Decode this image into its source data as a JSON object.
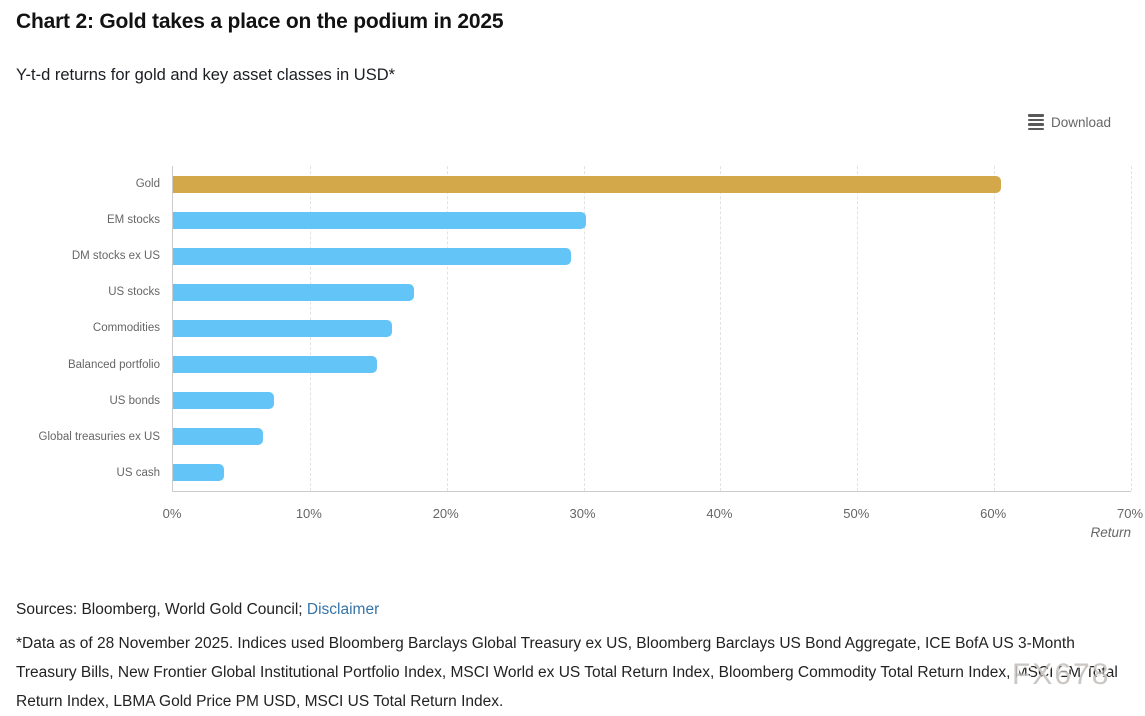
{
  "header": {
    "title": "Chart 2: Gold takes a place on the podium in 2025",
    "subtitle": "Y-t-d returns for gold and key asset classes in USD*"
  },
  "toolbar": {
    "download_label": "Download",
    "menu_icon": "hamburger-menu-icon"
  },
  "chart_data": {
    "type": "bar",
    "orientation": "horizontal",
    "title": "Chart 2: Gold takes a place on the podium in 2025",
    "subtitle": "Y-t-d returns for gold and key asset classes in USD*",
    "categories": [
      "Gold",
      "EM stocks",
      "DM stocks ex US",
      "US stocks",
      "Commodities",
      "Balanced portfolio",
      "US bonds",
      "Global treasuries ex US",
      "US cash"
    ],
    "values": [
      60.5,
      30.2,
      29.1,
      17.6,
      16.0,
      14.9,
      7.4,
      6.6,
      3.7
    ],
    "unit": "%",
    "xlabel": "Return",
    "ylabel": "",
    "x_ticks": [
      "0%",
      "10%",
      "20%",
      "30%",
      "40%",
      "50%",
      "60%",
      "70%"
    ],
    "xlim": [
      0,
      70
    ],
    "grid": true,
    "legend": "none",
    "bar_colors": {
      "Gold": "#d3a84a",
      "default": "#63c4f8"
    }
  },
  "footer": {
    "sources_text": "Sources: Bloomberg, World Gold Council;",
    "disclaimer_link": "Disclaimer",
    "footnote": "*Data as of 28 November 2025. Indices used Bloomberg Barclays Global Treasury ex US, Bloomberg Barclays US Bond Aggregate, ICE BofA US 3-Month Treasury Bills, New Frontier Global Institutional Portfolio Index, MSCI World ex US Total Return Index, Bloomberg Commodity Total Return Index, MSCI EM Total Return Index, LBMA Gold Price PM USD, MSCI US Total Return Index."
  },
  "watermark": "FX678",
  "colors": {
    "gold_bar": "#d3a84a",
    "blue_bar": "#63c4f8",
    "grid_line": "#e2e2e2",
    "axis_line": "#cccccc",
    "axis_label": "#666666",
    "text": "#222222",
    "link": "#3674a8"
  }
}
